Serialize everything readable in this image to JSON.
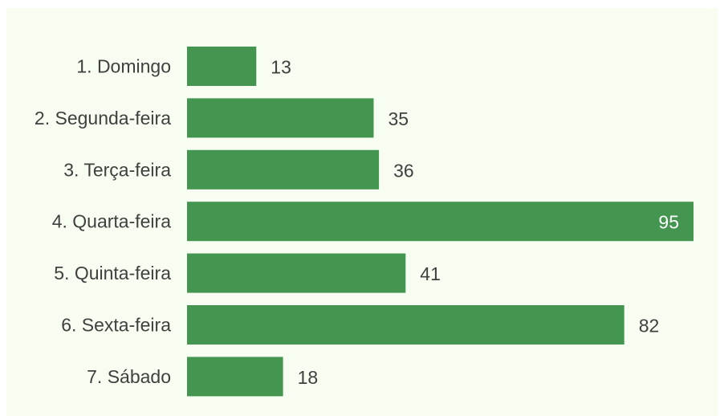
{
  "chart_data": {
    "type": "bar",
    "orientation": "horizontal",
    "categories": [
      "1. Domingo",
      "2. Segunda-feira",
      "3. Terça-feira",
      "4. Quarta-feira",
      "5. Quinta-feira",
      "6. Sexta-feira",
      "7. Sábado"
    ],
    "values": [
      13,
      35,
      36,
      95,
      41,
      82,
      18
    ],
    "title": "",
    "xlabel": "",
    "ylabel": "",
    "xlim": [
      0,
      95
    ],
    "grid": false,
    "legend": "none",
    "data_labels": true
  },
  "colors": {
    "bar": "#43954f",
    "background": "#f7fdf0",
    "label_text": "#404040",
    "value_outside": "#404040",
    "value_inside": "#ffffff"
  }
}
